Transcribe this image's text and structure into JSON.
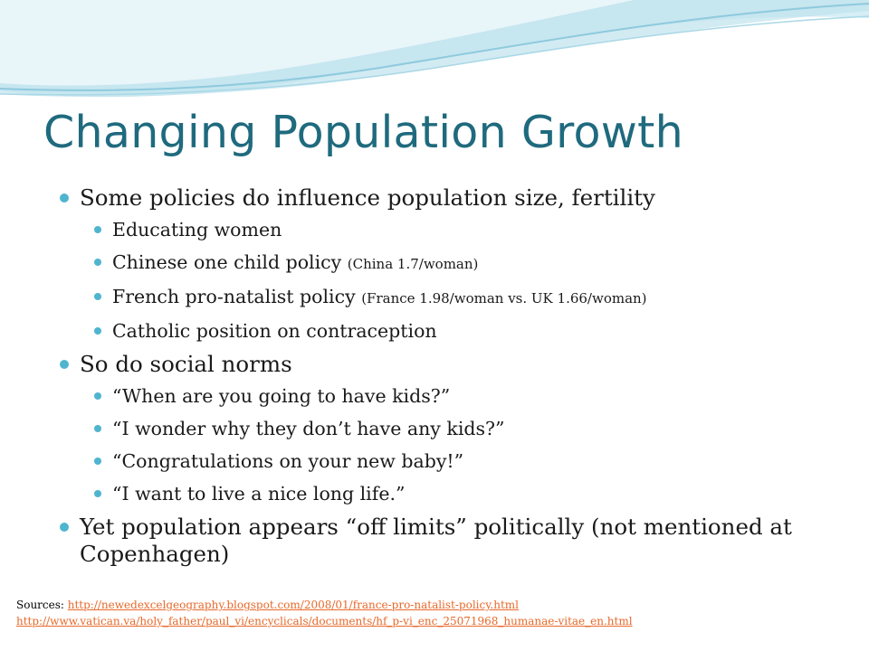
{
  "slide": {
    "title": "Changing Population Growth",
    "bullets": {
      "b1": "Some policies do influence population size, fertility",
      "b1_1": "Educating women",
      "b1_2": "Chinese one child policy",
      "b1_2_note": "(China 1.7/woman)",
      "b1_3": "French pro-natalist policy",
      "b1_3_note": "(France 1.98/woman vs.  UK 1.66/woman)",
      "b1_4": "Catholic position on contraception",
      "b2": "So do social norms",
      "b2_1": "“When are you going to have kids?”",
      "b2_2": "“I wonder why they don’t have any kids?”",
      "b2_3": "“Congratulations on your new baby!”",
      "b2_4": "“I want to live a nice long life.”",
      "b3": "Yet population appears “off limits” politically (not mentioned at Copenhagen)"
    },
    "sources": {
      "label": "Sources: ",
      "link1": "http://newedexcelgeography.blogspot.com/2008/01/france-pro-natalist-policy.html",
      "link2": "http://www.vatican.va/holy_father/paul_vi/encyclicals/documents/hf_p-vi_enc_25071968_humanae-vitae_en.html"
    }
  },
  "colors": {
    "title": "#1f6a7e",
    "bullet": "#4fb5cf",
    "link": "#e8692a"
  }
}
